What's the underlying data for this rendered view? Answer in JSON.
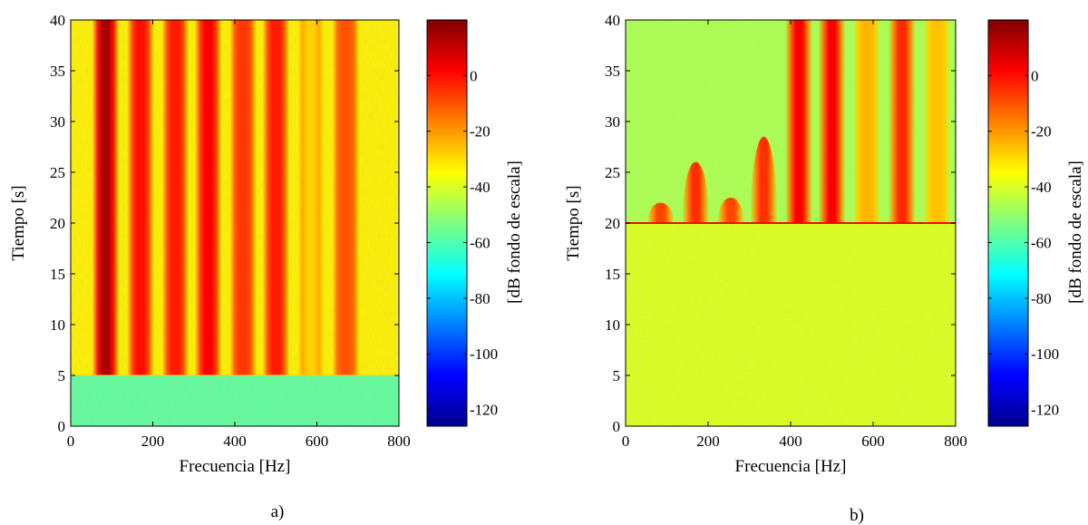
{
  "chart_data": [
    {
      "type": "heatmap",
      "caption": "a)",
      "xlabel": "Frecuencia [Hz]",
      "ylabel": "Tiempo [s]",
      "xlim": [
        0,
        800
      ],
      "ylim": [
        0,
        40
      ],
      "xticks": [
        0,
        200,
        400,
        600,
        800
      ],
      "yticks": [
        0,
        5,
        10,
        15,
        20,
        25,
        30,
        35,
        40
      ],
      "colorbar": {
        "label": "[dB fondo de escala]",
        "range": [
          -126,
          20
        ],
        "ticks": [
          0,
          -20,
          -40,
          -60,
          -80,
          -100,
          -120
        ],
        "colormap": "jet"
      },
      "background_level_db": [
        {
          "t_start": 0,
          "t_end": 5,
          "db": -58
        },
        {
          "t_start": 5,
          "t_end": 40,
          "db": -33
        }
      ],
      "bands": [
        {
          "freq_hz": 85,
          "t_start": 5,
          "t_end": 40,
          "peak_db": 14
        },
        {
          "freq_hz": 170,
          "t_start": 5,
          "t_end": 40,
          "peak_db": 0
        },
        {
          "freq_hz": 255,
          "t_start": 5,
          "t_end": 40,
          "peak_db": -2
        },
        {
          "freq_hz": 335,
          "t_start": 5,
          "t_end": 40,
          "peak_db": 2
        },
        {
          "freq_hz": 420,
          "t_start": 5,
          "t_end": 40,
          "peak_db": -6
        },
        {
          "freq_hz": 500,
          "t_start": 5,
          "t_end": 40,
          "peak_db": -2
        },
        {
          "freq_hz": 585,
          "t_start": 5,
          "t_end": 40,
          "peak_db": -28
        },
        {
          "freq_hz": 670,
          "t_start": 5,
          "t_end": 40,
          "peak_db": -10
        }
      ]
    },
    {
      "type": "heatmap",
      "caption": "b)",
      "xlabel": "Frecuencia [Hz]",
      "ylabel": "Tiempo [s]",
      "xlim": [
        0,
        800
      ],
      "ylim": [
        0,
        40
      ],
      "xticks": [
        0,
        200,
        400,
        600,
        800
      ],
      "yticks": [
        0,
        5,
        10,
        15,
        20,
        25,
        30,
        35,
        40
      ],
      "colorbar": {
        "label": "[dB fondo de escala]",
        "range": [
          -126,
          20
        ],
        "ticks": [
          0,
          -20,
          -40,
          -60,
          -80,
          -100,
          -120
        ],
        "colormap": "jet"
      },
      "background_level_db": [
        {
          "t_start": 0,
          "t_end": 20,
          "db": -40
        },
        {
          "t_start": 20,
          "t_end": 40,
          "db": -47
        }
      ],
      "bands": [
        {
          "freq_hz": 85,
          "t_start": 20,
          "t_end": 22,
          "peak_db": -8
        },
        {
          "freq_hz": 170,
          "t_start": 20,
          "t_end": 26,
          "peak_db": -5
        },
        {
          "freq_hz": 255,
          "t_start": 20,
          "t_end": 22.5,
          "peak_db": -8
        },
        {
          "freq_hz": 335,
          "t_start": 20,
          "t_end": 28.5,
          "peak_db": -5
        },
        {
          "freq_hz": 420,
          "t_start": 20,
          "t_end": 40,
          "peak_db": 2
        },
        {
          "freq_hz": 500,
          "t_start": 20,
          "t_end": 40,
          "peak_db": 2
        },
        {
          "freq_hz": 585,
          "t_start": 20,
          "t_end": 40,
          "peak_db": -24
        },
        {
          "freq_hz": 670,
          "t_start": 20,
          "t_end": 40,
          "peak_db": -4
        },
        {
          "freq_hz": 755,
          "t_start": 20,
          "t_end": 40,
          "peak_db": -26
        }
      ]
    }
  ]
}
